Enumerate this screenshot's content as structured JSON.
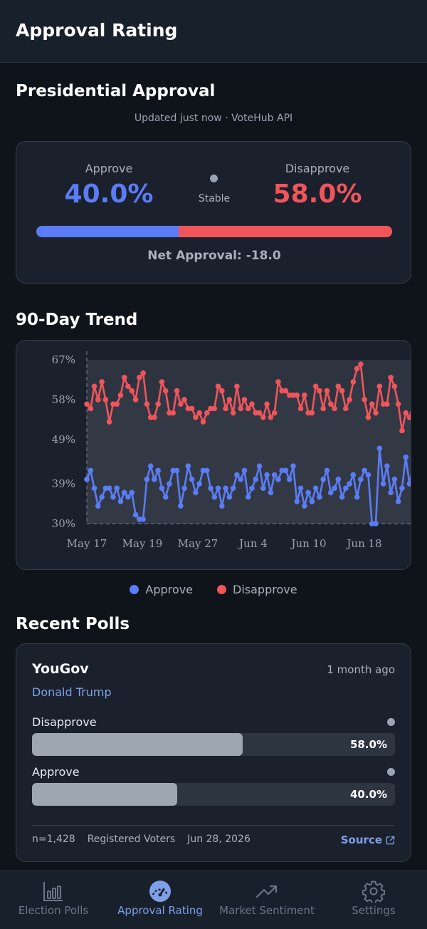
{
  "header": {
    "title": "Approval Rating"
  },
  "summary": {
    "section_title": "Presidential Approval",
    "updated_text": "Updated just now · VoteHub API",
    "approve_label": "Approve",
    "approve_value": "40.0%",
    "approve_pct": 40.0,
    "disapprove_label": "Disapprove",
    "disapprove_value": "58.0%",
    "disapprove_pct": 58.0,
    "trend_label": "Stable",
    "net_text": "Net Approval: -18.0",
    "colors": {
      "approve": "#5b7cf6",
      "disapprove": "#f0555c",
      "neutral": "#9aa4b2"
    }
  },
  "trend": {
    "section_title": "90-Day Trend",
    "legend": {
      "approve": "Approve",
      "disapprove": "Disapprove"
    }
  },
  "chart_data": {
    "type": "line",
    "title": "",
    "xlabel": "",
    "ylabel": "",
    "ylim": [
      30,
      67
    ],
    "y_ticks": [
      "67%",
      "58%",
      "49%",
      "39%",
      "30%"
    ],
    "y_tick_values": [
      67,
      58,
      49,
      39,
      30
    ],
    "x_tick_labels": [
      "May 17",
      "May 19",
      "May 27",
      "Jun 4",
      "Jun 10",
      "Jun 18"
    ],
    "grid": false,
    "legend": "bottom",
    "series": [
      {
        "name": "Approve",
        "color": "#5b7cf6",
        "values": [
          40,
          42,
          38,
          34,
          36,
          38,
          38,
          36,
          38,
          35,
          37,
          36,
          37,
          32,
          31,
          31,
          40,
          43,
          40,
          42,
          38,
          36,
          39,
          42,
          42,
          34,
          38,
          43,
          40,
          37,
          39,
          42,
          42,
          38,
          36,
          38,
          34,
          38,
          36,
          38,
          41,
          40,
          42,
          36,
          38,
          40,
          43,
          38,
          41,
          37,
          41,
          40,
          42,
          42,
          40,
          43,
          35,
          38,
          34,
          37,
          35,
          38,
          36,
          40,
          42,
          37,
          38,
          40,
          36,
          38,
          39,
          41,
          36,
          40,
          42,
          41,
          30,
          30,
          47,
          39,
          43,
          37,
          40,
          35,
          38,
          45,
          39,
          43,
          39
        ]
      },
      {
        "name": "Disapprove",
        "color": "#f0555c",
        "values": [
          57,
          56,
          61,
          58,
          62,
          58,
          53,
          57,
          57,
          59,
          63,
          61,
          60,
          58,
          63,
          64,
          57,
          54,
          54,
          57,
          62,
          60,
          55,
          55,
          60,
          57,
          58,
          56,
          56,
          54,
          55,
          53,
          55,
          56,
          56,
          61,
          60,
          56,
          58,
          55,
          61,
          56,
          58,
          56,
          57,
          55,
          55,
          54,
          57,
          54,
          55,
          62,
          60,
          60,
          59,
          59,
          59,
          56,
          59,
          55,
          55,
          61,
          60,
          56,
          60,
          57,
          56,
          61,
          60,
          56,
          58,
          62,
          65,
          66,
          58,
          54,
          57,
          55,
          61,
          57,
          57,
          63,
          61,
          57,
          51,
          55,
          54,
          57,
          58
        ]
      }
    ]
  },
  "recent": {
    "section_title": "Recent Polls",
    "poll": {
      "source": "YouGov",
      "time": "1 month ago",
      "subject": "Donald Trump",
      "rows": [
        {
          "label": "Disapprove",
          "value_text": "58.0%",
          "pct": 58.0
        },
        {
          "label": "Approve",
          "value_text": "40.0%",
          "pct": 40.0
        }
      ],
      "sample": "n=1,428",
      "population": "Registered Voters",
      "date": "Jun 28, 2026",
      "link_label": "Source"
    }
  },
  "tabbar": {
    "items": [
      {
        "label": "Election Polls",
        "icon": "bar-chart-icon",
        "active": false
      },
      {
        "label": "Approval Rating",
        "icon": "gauge-icon",
        "active": true
      },
      {
        "label": "Market Sentiment",
        "icon": "trending-up-icon",
        "active": false
      },
      {
        "label": "Settings",
        "icon": "gear-icon",
        "active": false
      }
    ]
  }
}
